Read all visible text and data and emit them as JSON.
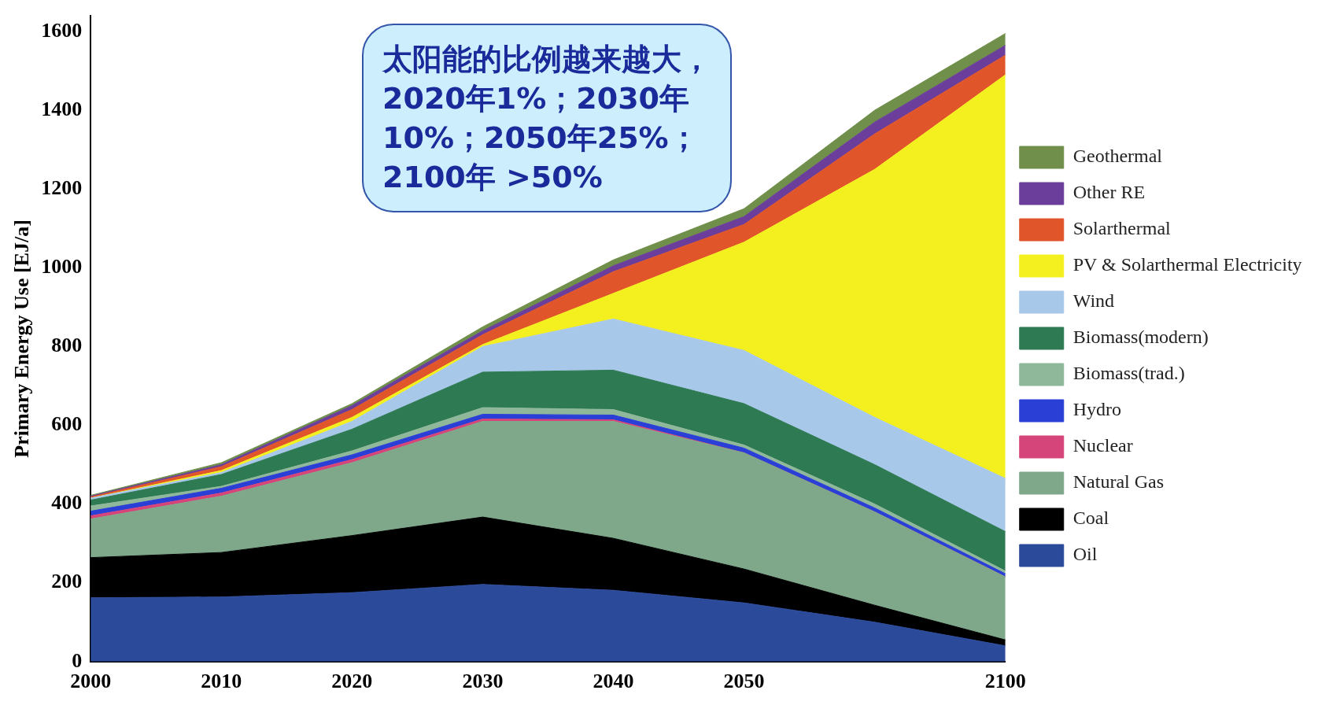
{
  "chart_data": {
    "type": "area",
    "stacked": true,
    "ylabel": "Primary Energy Use [EJ/a]",
    "categories": [
      "2000",
      "2010",
      "2020",
      "2030",
      "2040",
      "2050",
      null,
      "2100"
    ],
    "ylim": [
      0,
      1640
    ],
    "yticks": [
      0,
      200,
      400,
      600,
      800,
      1000,
      1200,
      1400,
      1600
    ],
    "grid": false,
    "legend": "right",
    "marker": "none",
    "annotations": [
      "太阳能的比例越来越大，2020年1%；2030年10%；2050年25%；2100年 >50%"
    ],
    "series": [
      {
        "name": "Oil",
        "color": "#2b4a9a",
        "values": [
          162,
          164,
          175,
          196,
          181,
          149,
          100,
          40
        ]
      },
      {
        "name": "Coal",
        "color": "#000000",
        "values": [
          102,
          113,
          145,
          171,
          132,
          86,
          43,
          15
        ]
      },
      {
        "name": "Natural Gas",
        "color": "#7fa88a",
        "values": [
          98,
          143,
          185,
          243,
          297,
          295,
          237,
          160
        ]
      },
      {
        "name": "Nuclear",
        "color": "#d6457a",
        "values": [
          8,
          8,
          8,
          6,
          4,
          0,
          0,
          0
        ]
      },
      {
        "name": "Hydro",
        "color": "#2a3fd6",
        "values": [
          12,
          12,
          12,
          12,
          12,
          12,
          10,
          8
        ]
      },
      {
        "name": "Biomass(trad.)",
        "color": "#8fb89a",
        "values": [
          13,
          5,
          10,
          17,
          14,
          8,
          10,
          7
        ]
      },
      {
        "name": "Biomass(modern)",
        "color": "#2e7a52",
        "values": [
          15,
          30,
          55,
          90,
          100,
          105,
          100,
          100
        ]
      },
      {
        "name": "Wind",
        "color": "#a8c8ea",
        "values": [
          5,
          5,
          20,
          65,
          130,
          135,
          120,
          135
        ]
      },
      {
        "name": "PV & Solarthermal Electricity",
        "color": "#f4f020",
        "values": [
          0,
          5,
          10,
          5,
          65,
          275,
          630,
          1025
        ]
      },
      {
        "name": "Solarthermal",
        "color": "#e0552a",
        "values": [
          3,
          10,
          20,
          25,
          55,
          45,
          90,
          50
        ]
      },
      {
        "name": "Other RE",
        "color": "#6a3e9a",
        "values": [
          2,
          5,
          10,
          10,
          15,
          20,
          30,
          25
        ]
      },
      {
        "name": "Geothermal",
        "color": "#6f8f4a",
        "values": [
          2,
          5,
          5,
          10,
          15,
          20,
          30,
          30
        ]
      }
    ]
  }
}
